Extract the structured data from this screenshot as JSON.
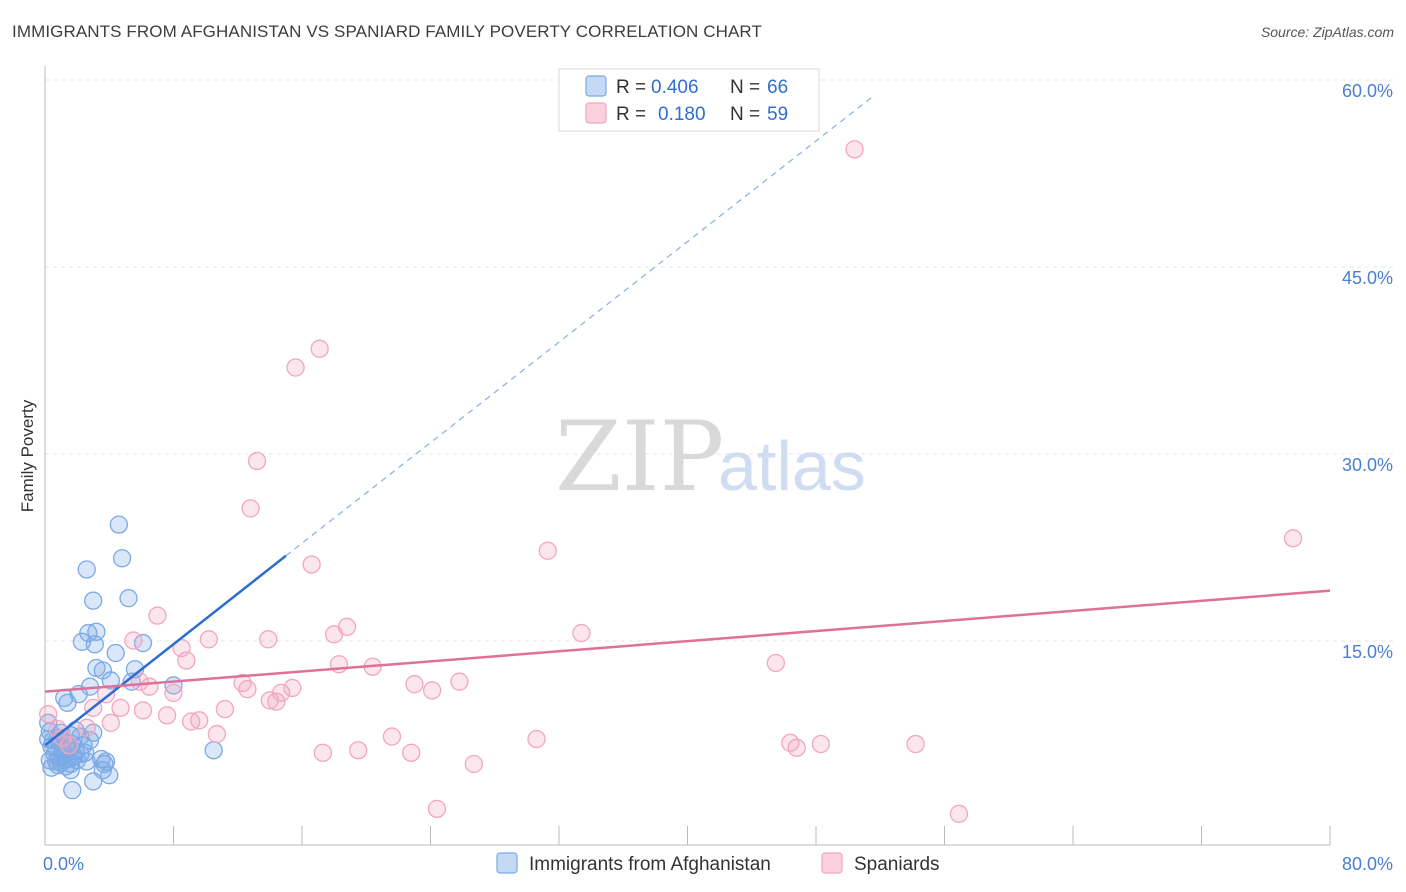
{
  "chart_data": {
    "type": "scatter",
    "title": "IMMIGRANTS FROM AFGHANISTAN VS SPANIARD FAMILY POVERTY CORRELATION CHART",
    "source": "Source: ZipAtlas.com",
    "ylabel": "Family Poverty",
    "xlim": [
      0,
      80
    ],
    "ylim": [
      0,
      60
    ],
    "x_tick_labels": [
      "0.0%",
      "80.0%"
    ],
    "y_ticks": [
      15,
      30,
      45,
      60
    ],
    "y_tick_labels": [
      "15.0%",
      "30.0%",
      "45.0%",
      "60.0%"
    ],
    "watermark": {
      "part1": "ZIP",
      "part2": "atlas"
    },
    "legend": [
      {
        "r_label": "R =",
        "r_value": "0.406",
        "n_label": "N =",
        "n_value": "66"
      },
      {
        "r_label": "R =",
        "r_value": "0.180",
        "n_label": "N =",
        "n_value": "59"
      }
    ],
    "series": [
      {
        "name": "Immigrants from Afghanistan",
        "color": "#7aa9e6",
        "line_color": "#2c6fd1",
        "trend": {
          "x0": 0,
          "y0": 8.0,
          "x1": 15.0,
          "y1": 23.2,
          "dash_x1": 51.5,
          "dash_y1": 60.0
        },
        "points": [
          [
            4.6,
            25.7
          ],
          [
            4.8,
            23.0
          ],
          [
            2.6,
            22.1
          ],
          [
            5.2,
            19.8
          ],
          [
            3.0,
            19.6
          ],
          [
            3.2,
            17.1
          ],
          [
            2.7,
            17.0
          ],
          [
            2.3,
            16.3
          ],
          [
            6.1,
            16.2
          ],
          [
            3.1,
            16.1
          ],
          [
            4.4,
            15.4
          ],
          [
            3.2,
            14.2
          ],
          [
            3.6,
            14.0
          ],
          [
            5.6,
            14.1
          ],
          [
            4.1,
            13.2
          ],
          [
            5.4,
            13.1
          ],
          [
            8.0,
            12.8
          ],
          [
            2.8,
            12.7
          ],
          [
            2.1,
            12.1
          ],
          [
            1.2,
            11.8
          ],
          [
            1.4,
            11.4
          ],
          [
            0.2,
            9.8
          ],
          [
            0.3,
            9.1
          ],
          [
            1.0,
            9.0
          ],
          [
            3.0,
            9.0
          ],
          [
            0.8,
            8.6
          ],
          [
            1.6,
            8.8
          ],
          [
            2.2,
            8.7
          ],
          [
            0.5,
            8.4
          ],
          [
            0.9,
            8.3
          ],
          [
            1.3,
            8.2
          ],
          [
            1.7,
            8.1
          ],
          [
            2.4,
            8.0
          ],
          [
            0.4,
            7.9
          ],
          [
            0.7,
            7.8
          ],
          [
            1.1,
            7.7
          ],
          [
            1.5,
            7.6
          ],
          [
            1.9,
            7.5
          ],
          [
            2.5,
            7.4
          ],
          [
            0.6,
            7.3
          ],
          [
            1.2,
            7.2
          ],
          [
            1.8,
            7.1
          ],
          [
            2.2,
            7.3
          ],
          [
            0.9,
            7.0
          ],
          [
            1.4,
            6.9
          ],
          [
            0.3,
            6.8
          ],
          [
            0.7,
            6.7
          ],
          [
            1.0,
            6.6
          ],
          [
            1.6,
            6.5
          ],
          [
            2.0,
            6.8
          ],
          [
            2.6,
            6.7
          ],
          [
            3.5,
            6.9
          ],
          [
            3.8,
            6.7
          ],
          [
            0.4,
            6.2
          ],
          [
            0.8,
            6.4
          ],
          [
            1.3,
            6.3
          ],
          [
            1.6,
            6.0
          ],
          [
            3.6,
            6.0
          ],
          [
            4.0,
            5.6
          ],
          [
            3.0,
            5.1
          ],
          [
            1.7,
            4.4
          ],
          [
            10.5,
            7.6
          ],
          [
            0.2,
            8.5
          ],
          [
            2.8,
            8.4
          ],
          [
            1.9,
            9.2
          ],
          [
            3.7,
            6.5
          ]
        ]
      },
      {
        "name": "Spaniards",
        "color": "#f2a6bf",
        "line_color": "#e0709a",
        "trend": {
          "x0": 0,
          "y0": 12.3,
          "x1": 80.0,
          "y1": 20.4
        },
        "points": [
          [
            50.4,
            55.8
          ],
          [
            17.1,
            39.8
          ],
          [
            15.6,
            38.3
          ],
          [
            13.2,
            30.8
          ],
          [
            12.8,
            27.0
          ],
          [
            77.7,
            24.6
          ],
          [
            31.3,
            23.6
          ],
          [
            16.6,
            22.5
          ],
          [
            7.0,
            18.4
          ],
          [
            18.8,
            17.5
          ],
          [
            33.4,
            17.0
          ],
          [
            18.0,
            16.9
          ],
          [
            10.2,
            16.5
          ],
          [
            13.9,
            16.5
          ],
          [
            5.5,
            16.4
          ],
          [
            8.5,
            15.8
          ],
          [
            8.8,
            14.8
          ],
          [
            18.3,
            14.5
          ],
          [
            20.4,
            14.3
          ],
          [
            45.5,
            14.6
          ],
          [
            5.9,
            13.1
          ],
          [
            12.3,
            13.0
          ],
          [
            23.0,
            12.9
          ],
          [
            25.8,
            13.1
          ],
          [
            6.5,
            12.7
          ],
          [
            12.6,
            12.5
          ],
          [
            15.4,
            12.6
          ],
          [
            24.1,
            12.4
          ],
          [
            8.0,
            12.2
          ],
          [
            14.7,
            12.2
          ],
          [
            3.8,
            12.1
          ],
          [
            14.0,
            11.6
          ],
          [
            14.4,
            11.5
          ],
          [
            3.0,
            11.0
          ],
          [
            4.7,
            11.0
          ],
          [
            6.1,
            10.8
          ],
          [
            11.2,
            10.9
          ],
          [
            7.6,
            10.4
          ],
          [
            9.6,
            10.0
          ],
          [
            9.1,
            9.9
          ],
          [
            4.1,
            9.8
          ],
          [
            0.2,
            10.5
          ],
          [
            0.8,
            9.3
          ],
          [
            2.6,
            9.4
          ],
          [
            10.7,
            8.9
          ],
          [
            21.6,
            8.7
          ],
          [
            30.6,
            8.5
          ],
          [
            48.3,
            8.1
          ],
          [
            54.2,
            8.1
          ],
          [
            1.5,
            8.0
          ],
          [
            46.4,
            8.2
          ],
          [
            46.8,
            7.8
          ],
          [
            19.5,
            7.6
          ],
          [
            17.3,
            7.4
          ],
          [
            22.8,
            7.4
          ],
          [
            26.7,
            6.5
          ],
          [
            24.4,
            2.9
          ],
          [
            56.9,
            2.5
          ],
          [
            1.1,
            8.6
          ]
        ]
      }
    ]
  }
}
